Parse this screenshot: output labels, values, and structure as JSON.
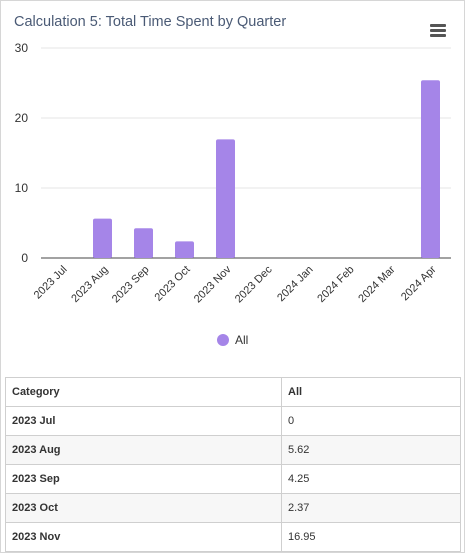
{
  "menu_icon": "hamburger-menu-icon",
  "chart_data": {
    "type": "bar",
    "title": "Calculation 5: Total Time Spent by Quarter",
    "categories": [
      "2023 Jul",
      "2023 Aug",
      "2023 Sep",
      "2023 Oct",
      "2023 Nov",
      "2023 Dec",
      "2024 Jan",
      "2024 Feb",
      "2024 Mar",
      "2024 Apr"
    ],
    "series": [
      {
        "name": "All",
        "color": "#a585e8",
        "values": [
          0,
          5.62,
          4.25,
          2.37,
          16.95,
          0,
          0,
          0,
          0,
          25.4
        ]
      }
    ],
    "ylim": [
      0,
      30
    ],
    "yticks": [
      "0",
      "10",
      "20",
      "30"
    ],
    "grid": true,
    "legend": "bottom-center"
  },
  "table": {
    "headers": [
      "Category",
      "All"
    ],
    "rows": [
      [
        "2023 Jul",
        "0"
      ],
      [
        "2023 Aug",
        "5.62"
      ],
      [
        "2023 Sep",
        "4.25"
      ],
      [
        "2023 Oct",
        "2.37"
      ],
      [
        "2023 Nov",
        "16.95"
      ]
    ]
  }
}
